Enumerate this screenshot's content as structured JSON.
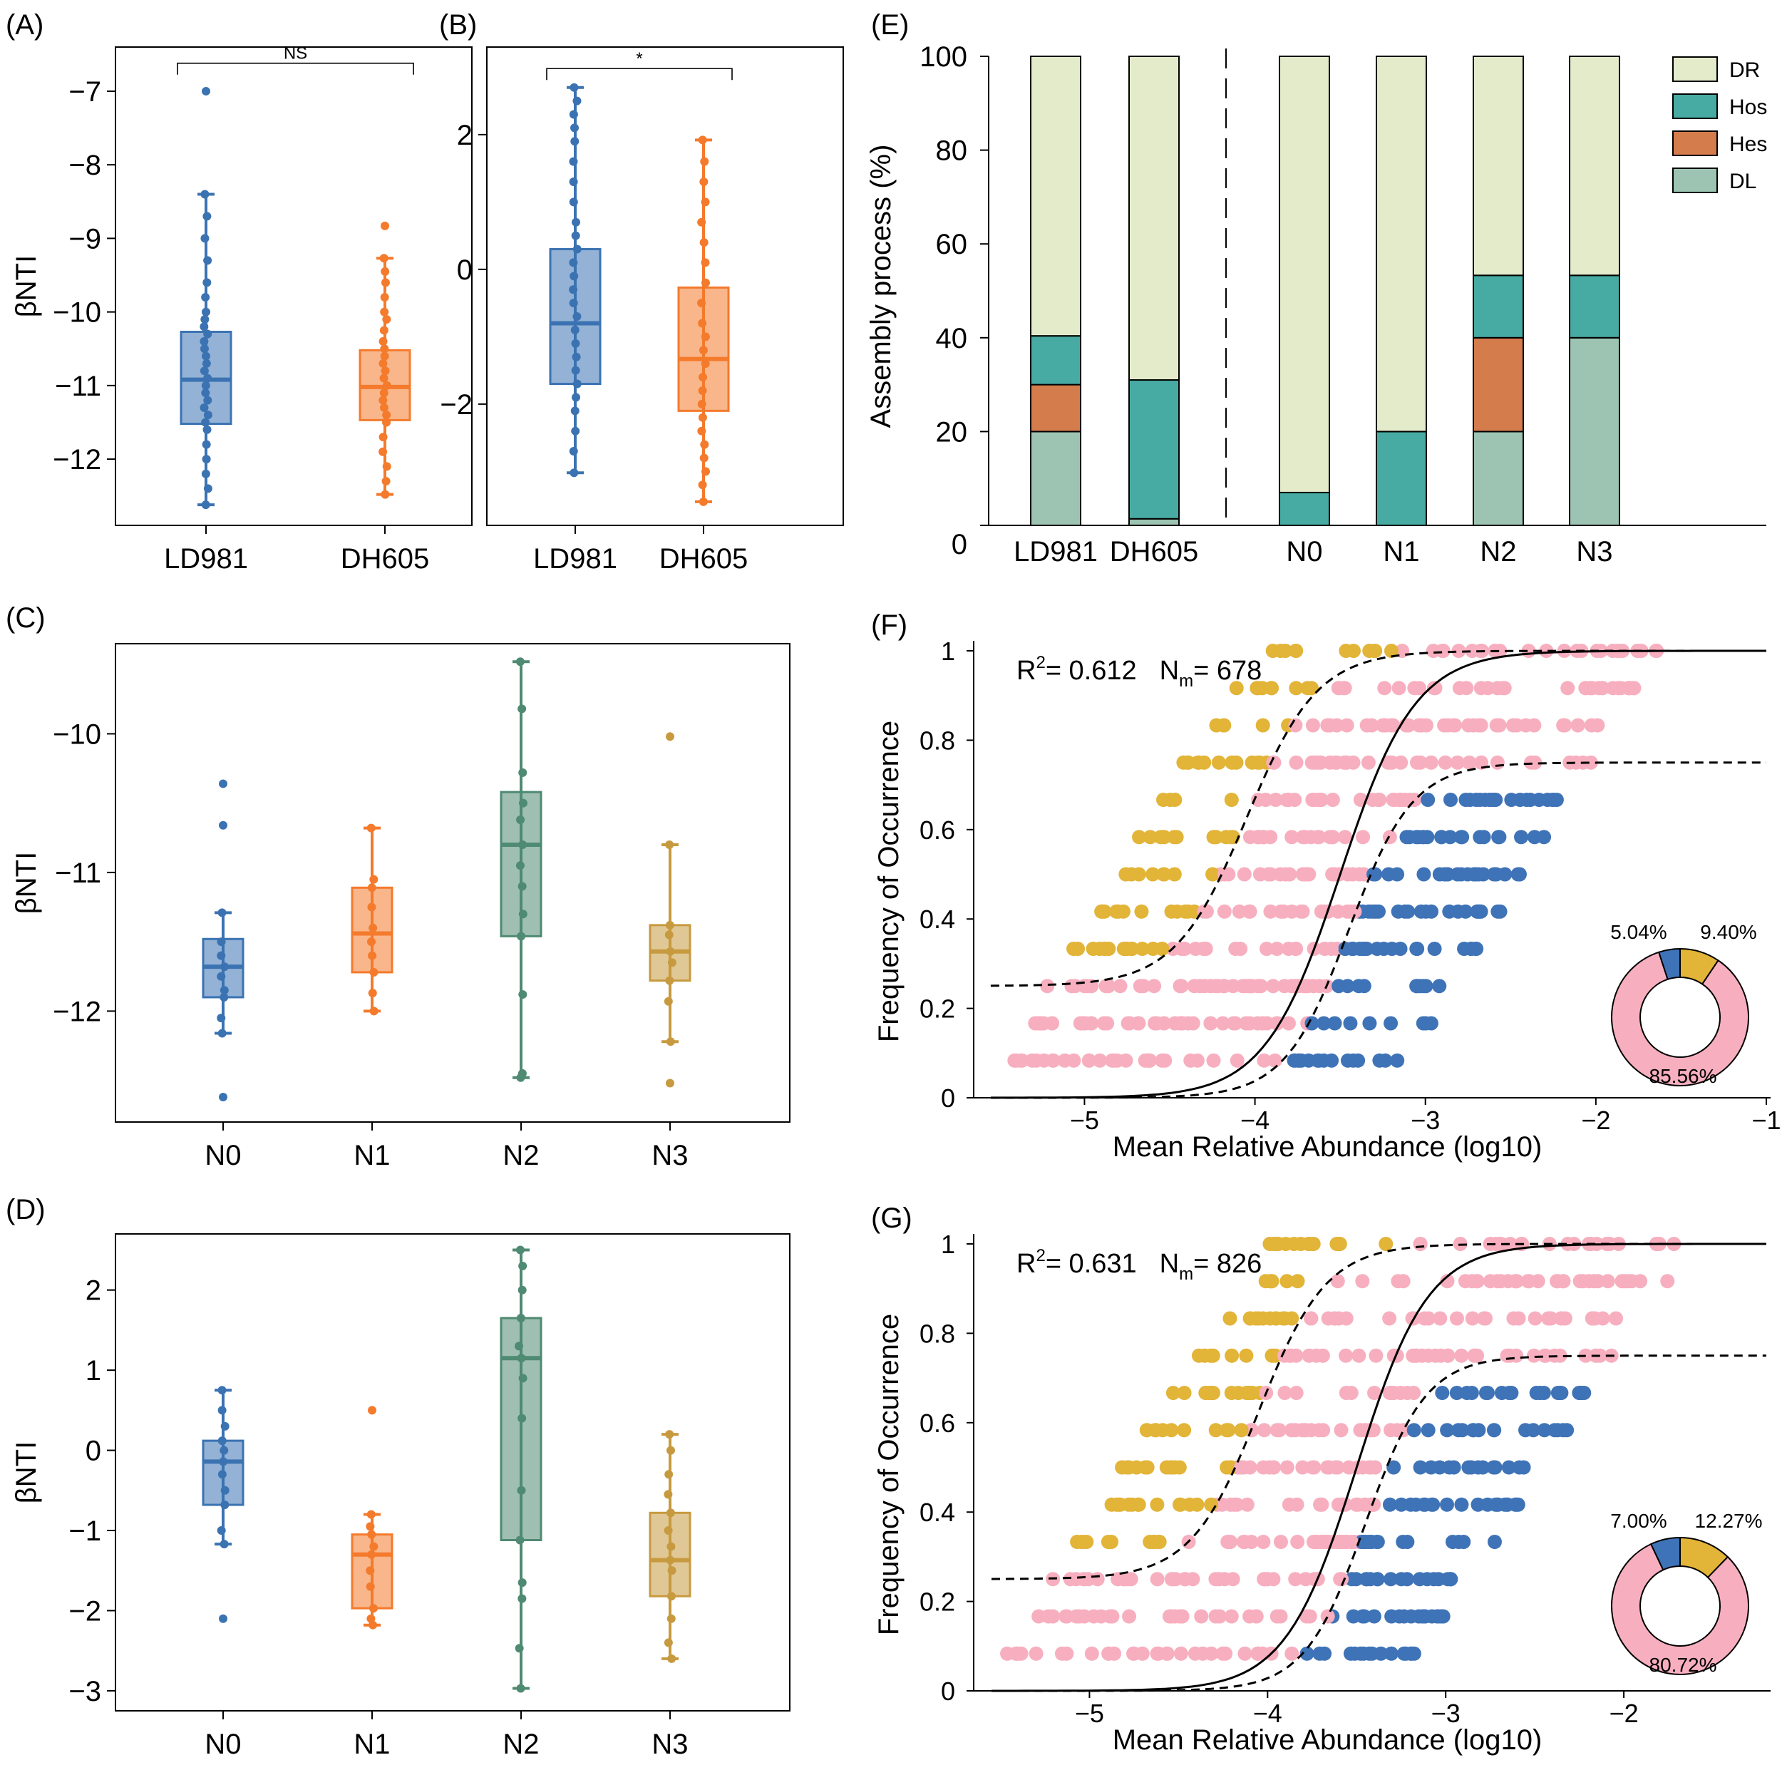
{
  "colors": {
    "blue": "#3b73b2",
    "orange": "#f47a2c",
    "green": "#4f8a72",
    "gold": "#c79a3f",
    "DR": "#e4ebcb",
    "Hos": "#47aba3",
    "Hes": "#d47c4c",
    "DL": "#9dc4b2",
    "pink": "#f7afbf",
    "scatter_gold": "#e2b437",
    "scatter_blue": "#3f73b7"
  },
  "chart_data": [
    {
      "id": "A",
      "type": "box",
      "panel_label": "(A)",
      "ylabel": "βNTI",
      "ylim": [
        -12.9,
        -6.4
      ],
      "yticks": [
        -7,
        -8,
        -9,
        -10,
        -11,
        -12
      ],
      "ytick_labels": [
        "−7",
        "−8",
        "−9",
        "−10",
        "−11",
        "−12"
      ],
      "categories": [
        "LD981",
        "DH605"
      ],
      "boxes": [
        {
          "name": "LD981",
          "color": "blue",
          "min": -12.62,
          "q1": -11.52,
          "median": -10.92,
          "q3": -10.27,
          "max": -8.4,
          "outliers": [
            -7.0
          ],
          "points": [
            -8.4,
            -8.7,
            -9.0,
            -9.3,
            -9.6,
            -9.8,
            -10.0,
            -10.1,
            -10.2,
            -10.3,
            -10.4,
            -10.5,
            -10.6,
            -10.7,
            -10.8,
            -10.9,
            -11.0,
            -11.1,
            -11.2,
            -11.3,
            -11.4,
            -11.5,
            -11.6,
            -11.8,
            -12.0,
            -12.2,
            -12.4,
            -12.62
          ]
        },
        {
          "name": "DH605",
          "color": "orange",
          "min": -12.48,
          "q1": -11.47,
          "median": -11.02,
          "q3": -10.52,
          "max": -9.27,
          "outliers": [
            -8.83
          ],
          "points": [
            -9.27,
            -9.45,
            -9.6,
            -9.8,
            -10.0,
            -10.1,
            -10.25,
            -10.4,
            -10.5,
            -10.6,
            -10.7,
            -10.8,
            -10.9,
            -11.0,
            -11.1,
            -11.2,
            -11.3,
            -11.4,
            -11.5,
            -11.7,
            -11.9,
            -12.1,
            -12.3,
            -12.48
          ]
        }
      ],
      "significance": {
        "label": "NS",
        "y": -6.62
      }
    },
    {
      "id": "B",
      "type": "box",
      "panel_label": "(B)",
      "ylabel": "",
      "ylim": [
        -3.8,
        3.3
      ],
      "yticks": [
        2,
        0,
        -2
      ],
      "ytick_labels": [
        "2",
        "0",
        "−2"
      ],
      "categories": [
        "LD981",
        "DH605"
      ],
      "boxes": [
        {
          "name": "LD981",
          "color": "blue",
          "min": -3.02,
          "q1": -1.7,
          "median": -0.8,
          "q3": 0.3,
          "max": 2.7,
          "outliers": [],
          "points": [
            2.7,
            2.5,
            2.3,
            2.1,
            1.9,
            1.6,
            1.3,
            1.0,
            0.7,
            0.5,
            0.3,
            0.1,
            -0.1,
            -0.3,
            -0.5,
            -0.7,
            -0.9,
            -1.1,
            -1.3,
            -1.5,
            -1.7,
            -1.9,
            -2.1,
            -2.4,
            -2.7,
            -3.02
          ]
        },
        {
          "name": "DH605",
          "color": "orange",
          "min": -3.45,
          "q1": -2.1,
          "median": -1.33,
          "q3": -0.27,
          "max": 1.92,
          "outliers": [],
          "points": [
            1.92,
            1.6,
            1.3,
            1.0,
            0.7,
            0.4,
            0.1,
            -0.2,
            -0.5,
            -0.8,
            -1.0,
            -1.2,
            -1.4,
            -1.6,
            -1.8,
            -2.0,
            -2.2,
            -2.4,
            -2.6,
            -2.8,
            -3.0,
            -3.2,
            -3.45
          ]
        }
      ],
      "significance": {
        "label": "*",
        "y": 2.98
      }
    },
    {
      "id": "C",
      "type": "box",
      "panel_label": "(C)",
      "ylabel": "βNTI",
      "ylim": [
        -12.8,
        -9.35
      ],
      "yticks": [
        -10,
        -11,
        -12
      ],
      "ytick_labels": [
        "−10",
        "−11",
        "−12"
      ],
      "categories": [
        "N0",
        "N1",
        "N2",
        "N3"
      ],
      "boxes": [
        {
          "name": "N0",
          "color": "blue",
          "min": -12.16,
          "q1": -11.9,
          "median": -11.68,
          "q3": -11.48,
          "max": -11.29,
          "outliers": [
            -10.36,
            -10.66,
            -12.62
          ],
          "points": [
            -11.29,
            -11.5,
            -11.6,
            -11.68,
            -11.75,
            -11.85,
            -11.9,
            -12.05,
            -12.16
          ]
        },
        {
          "name": "N1",
          "color": "orange",
          "min": -12.0,
          "q1": -11.72,
          "median": -11.44,
          "q3": -11.11,
          "max": -10.68,
          "outliers": [],
          "points": [
            -10.68,
            -11.05,
            -11.11,
            -11.25,
            -11.4,
            -11.5,
            -11.6,
            -11.72,
            -11.87,
            -12.0
          ]
        },
        {
          "name": "N2",
          "color": "green",
          "min": -12.48,
          "q1": -11.46,
          "median": -10.8,
          "q3": -10.42,
          "max": -9.48,
          "outliers": [],
          "points": [
            -9.48,
            -9.82,
            -10.28,
            -10.5,
            -10.62,
            -10.8,
            -10.95,
            -11.1,
            -11.3,
            -11.46,
            -11.88,
            -12.45,
            -12.48
          ]
        },
        {
          "name": "N3",
          "color": "gold",
          "min": -12.22,
          "q1": -11.78,
          "median": -11.57,
          "q3": -11.38,
          "max": -10.8,
          "outliers": [
            -10.02,
            -12.52
          ],
          "points": [
            -10.8,
            -11.38,
            -11.45,
            -11.57,
            -11.65,
            -11.78,
            -11.93,
            -12.22
          ]
        }
      ]
    },
    {
      "id": "D",
      "type": "box",
      "panel_label": "(D)",
      "ylabel": "βNTI",
      "ylim": [
        -3.25,
        2.7
      ],
      "yticks": [
        2,
        1,
        0,
        -1,
        -2,
        -3
      ],
      "ytick_labels": [
        "2",
        "1",
        "0",
        "−1",
        "−2",
        "−3"
      ],
      "categories": [
        "N0",
        "N1",
        "N2",
        "N3"
      ],
      "boxes": [
        {
          "name": "N0",
          "color": "blue",
          "min": -1.17,
          "q1": -0.68,
          "median": -0.14,
          "q3": 0.12,
          "max": 0.75,
          "outliers": [
            -2.1
          ],
          "points": [
            0.75,
            0.5,
            0.3,
            0.12,
            0.0,
            -0.14,
            -0.3,
            -0.5,
            -0.68,
            -1.0,
            -1.17
          ]
        },
        {
          "name": "N1",
          "color": "orange",
          "min": -2.18,
          "q1": -1.97,
          "median": -1.3,
          "q3": -1.05,
          "max": -0.8,
          "outliers": [
            0.5
          ],
          "points": [
            -0.8,
            -0.95,
            -1.05,
            -1.2,
            -1.3,
            -1.5,
            -1.7,
            -1.97,
            -2.1,
            -2.18
          ]
        },
        {
          "name": "N2",
          "color": "green",
          "min": -2.97,
          "q1": -1.12,
          "median": 1.15,
          "q3": 1.65,
          "max": 2.5,
          "outliers": [],
          "points": [
            2.5,
            2.3,
            2.0,
            1.65,
            1.3,
            1.15,
            0.9,
            0.4,
            -0.5,
            -1.12,
            -1.65,
            -1.85,
            -2.47,
            -2.97
          ]
        },
        {
          "name": "N3",
          "color": "gold",
          "min": -2.6,
          "q1": -1.82,
          "median": -1.37,
          "q3": -0.78,
          "max": 0.2,
          "outliers": [],
          "points": [
            0.2,
            0.0,
            -0.3,
            -0.55,
            -0.78,
            -1.0,
            -1.2,
            -1.37,
            -1.5,
            -1.82,
            -2.1,
            -2.4,
            -2.6
          ]
        }
      ]
    },
    {
      "id": "E",
      "type": "stacked_bar",
      "panel_label": "(E)",
      "ylabel": "Assembly process (%)",
      "ylim": [
        0,
        100
      ],
      "yticks": [
        0,
        20,
        40,
        60,
        80,
        100
      ],
      "ytick_labels": [
        "0",
        "20",
        "40",
        "60",
        "80",
        "100"
      ],
      "categories": [
        "LD981",
        "DH605",
        "N0",
        "N1",
        "N2",
        "N3"
      ],
      "series": [
        {
          "name": "DL",
          "values": [
            20,
            1.4,
            0,
            0,
            20,
            40
          ]
        },
        {
          "name": "Hes",
          "values": [
            10,
            0,
            0,
            0,
            20,
            0
          ]
        },
        {
          "name": "Hos",
          "values": [
            10.4,
            29.6,
            7,
            20,
            13.3,
            13.3
          ]
        },
        {
          "name": "DR",
          "values": [
            59.6,
            69,
            93,
            80,
            46.7,
            46.7
          ]
        }
      ],
      "legend": [
        "DR",
        "Hos",
        "Hes",
        "DL"
      ],
      "legend_position": "top-right"
    },
    {
      "id": "F",
      "type": "scatter",
      "panel_label": "(F)",
      "xlabel": "Mean Relative Abundance (log10)",
      "ylabel": "Frequency of Occurrence",
      "xlim": [
        -5.65,
        -1.0
      ],
      "ylim": [
        0,
        1.0
      ],
      "xticks": [
        -5,
        -4,
        -3,
        -2,
        -1
      ],
      "xtick_labels": [
        "−5",
        "−4",
        "−3",
        "−2",
        "−1"
      ],
      "yticks": [
        0,
        0.2,
        0.4,
        0.6,
        0.8,
        1
      ],
      "ytick_labels": [
        "0",
        "0.2",
        "0.4",
        "0.6",
        "0.8",
        "1"
      ],
      "n_samples": 12,
      "fit_center": -3.5,
      "fit_max": 1.0,
      "fit_width": 0.22,
      "lower_center": -3.15,
      "lower_plateau": 0.75,
      "annotation": {
        "r2_label": "R",
        "r2_sup": "2",
        "r2_value": "= 0.612",
        "nm_label": "N",
        "nm_sub": "m",
        "nm_value": "= 678"
      },
      "pie": {
        "values": [
          85.56,
          5.04,
          9.4
        ],
        "labels": [
          "85.56%",
          "5.04%",
          "9.40%"
        ]
      }
    },
    {
      "id": "G",
      "type": "scatter",
      "panel_label": "(G)",
      "xlabel": "Mean Relative Abundance (log10)",
      "ylabel": "Frequency of Occurrence",
      "xlim": [
        -5.65,
        -1.2
      ],
      "ylim": [
        0,
        1.0
      ],
      "xticks": [
        -5,
        -4,
        -3,
        -2
      ],
      "xtick_labels": [
        "−5",
        "−4",
        "−3",
        "−2"
      ],
      "yticks": [
        0,
        0.2,
        0.4,
        0.6,
        0.8,
        1
      ],
      "ytick_labels": [
        "0",
        "0.2",
        "0.4",
        "0.6",
        "0.8",
        "1"
      ],
      "n_samples": 12,
      "fit_center": -3.5,
      "fit_max": 1.0,
      "fit_width": 0.2,
      "lower_center": -3.15,
      "lower_plateau": 0.75,
      "annotation": {
        "r2_label": "R",
        "r2_sup": "2",
        "r2_value": "= 0.631",
        "nm_label": "N",
        "nm_sub": "m",
        "nm_value": "= 826"
      },
      "pie": {
        "values": [
          80.72,
          7.0,
          12.27
        ],
        "labels": [
          "80.72%",
          "7.00%",
          "12.27%"
        ]
      }
    }
  ]
}
